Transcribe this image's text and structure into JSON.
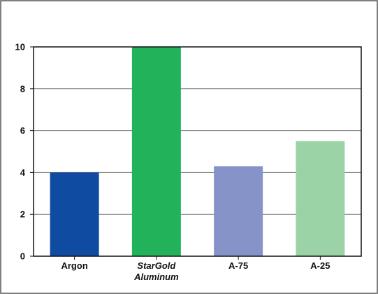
{
  "chart_data": {
    "type": "bar",
    "title": "",
    "xlabel": "",
    "ylabel": "",
    "categories": [
      {
        "lines": [
          "Argon"
        ],
        "italic": false
      },
      {
        "lines": [
          "StarGold",
          "Aluminum"
        ],
        "italic": true
      },
      {
        "lines": [
          "A-75"
        ],
        "italic": false
      },
      {
        "lines": [
          "A-25"
        ],
        "italic": false
      }
    ],
    "values": [
      4.0,
      10.0,
      4.3,
      5.5
    ],
    "colors": [
      "#0e4ba1",
      "#22b35a",
      "#8593c8",
      "#9cd3a6"
    ],
    "ylim": [
      0,
      10
    ],
    "yticks": [
      "0",
      "2",
      "4",
      "6",
      "8",
      "10"
    ],
    "grid": true,
    "legend": "none",
    "frame_color": "#555555",
    "grid_color": "#777777"
  }
}
